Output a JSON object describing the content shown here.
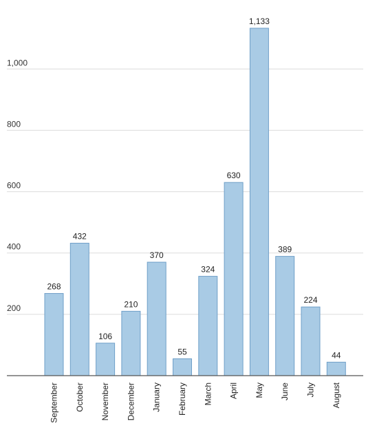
{
  "chart_data": {
    "type": "bar",
    "title": "",
    "xlabel": "",
    "ylabel": "",
    "categories": [
      "September",
      "October",
      "November",
      "December",
      "January",
      "February",
      "March",
      "April",
      "May",
      "June",
      "July",
      "August"
    ],
    "values": [
      268,
      432,
      106,
      210,
      370,
      55,
      324,
      630,
      1133,
      389,
      224,
      44
    ],
    "value_labels": [
      "268",
      "432",
      "106",
      "210",
      "370",
      "55",
      "324",
      "630",
      "1,133",
      "389",
      "224",
      "44"
    ],
    "y_ticks": [
      200,
      400,
      600,
      800,
      1000
    ],
    "y_tick_labels": [
      "200",
      "400",
      "600",
      "800",
      "1,000"
    ],
    "ylim": [
      0,
      1133
    ],
    "grid": true,
    "legend": "none",
    "colors": {
      "bar_fill": "#a9cbe5",
      "bar_stroke": "#6f9fc8",
      "grid": "#dcdcdc",
      "axis": "#555555"
    }
  }
}
